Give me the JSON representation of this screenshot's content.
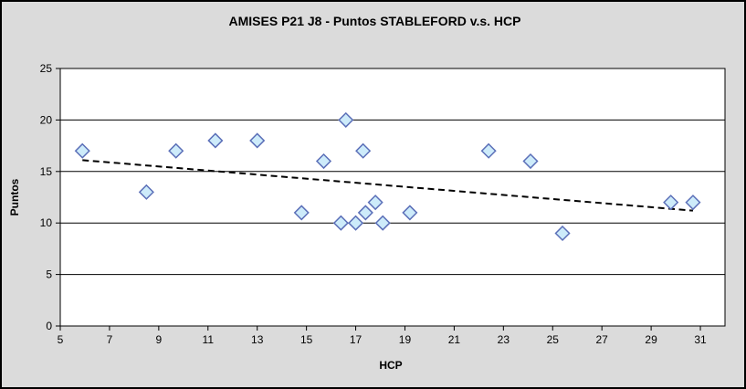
{
  "chart_data": {
    "type": "scatter",
    "title": "AMISES P21 J8 - Puntos STABLEFORD v.s. HCP",
    "xlabel": "HCP",
    "ylabel": "Puntos",
    "xlim": [
      5,
      32
    ],
    "ylim": [
      0,
      25
    ],
    "x_ticks": [
      5,
      7,
      9,
      11,
      13,
      15,
      17,
      19,
      21,
      23,
      25,
      27,
      29,
      31
    ],
    "y_ticks": [
      0,
      5,
      10,
      15,
      20,
      25
    ],
    "grid": "horizontal-only",
    "legend_position": "none",
    "series": [
      {
        "name": "Puntos STABLEFORD",
        "marker": "diamond",
        "points": [
          [
            5.9,
            17
          ],
          [
            8.5,
            13
          ],
          [
            9.7,
            17
          ],
          [
            11.3,
            18
          ],
          [
            13.0,
            18
          ],
          [
            14.8,
            11
          ],
          [
            15.7,
            16
          ],
          [
            16.4,
            10
          ],
          [
            16.6,
            20
          ],
          [
            17.0,
            10
          ],
          [
            17.3,
            17
          ],
          [
            17.4,
            11
          ],
          [
            17.8,
            12
          ],
          [
            18.1,
            10
          ],
          [
            19.2,
            11
          ],
          [
            22.4,
            17
          ],
          [
            24.1,
            16
          ],
          [
            25.4,
            9
          ],
          [
            29.8,
            12
          ],
          [
            30.7,
            12
          ]
        ]
      }
    ],
    "trendline": {
      "style": "dashed",
      "x1": 5.9,
      "y1": 16.1,
      "x2": 30.7,
      "y2": 11.2
    },
    "colors": {
      "figure_bg": "#dbdbdb",
      "figure_border": "#000000",
      "plot_bg": "#ffffff",
      "gridline": "#000000",
      "axis": "#000000",
      "tick_text": "#000000",
      "marker_fill": "#cdebfa",
      "marker_stroke": "#5b6fb8",
      "trend": "#000000"
    }
  }
}
